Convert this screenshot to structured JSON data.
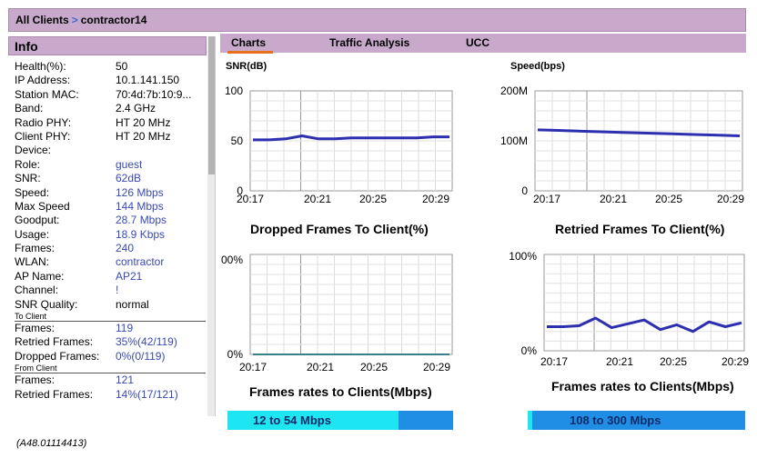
{
  "breadcrumb": {
    "root": "All Clients",
    "separator": ">",
    "current": "contractor14"
  },
  "info": {
    "title": "Info",
    "fields": [
      {
        "label": "Health(%):",
        "value": "50",
        "blue": false
      },
      {
        "label": "IP Address:",
        "value": "10.1.141.150",
        "blue": false
      },
      {
        "label": "Station MAC:",
        "value": "70:4d:7b:10:9...",
        "blue": false
      },
      {
        "label": "Band:",
        "value": "2.4 GHz",
        "blue": false
      },
      {
        "label": "Radio PHY:",
        "value": "HT 20 MHz",
        "blue": false
      },
      {
        "label": "Client PHY:",
        "value": "HT 20 MHz",
        "blue": false
      },
      {
        "label": "Device:",
        "value": "",
        "blue": false
      },
      {
        "label": "Role:",
        "value": "guest",
        "blue": true
      },
      {
        "label": "SNR:",
        "value": "62dB",
        "blue": true
      },
      {
        "label": "Speed:",
        "value": "126 Mbps",
        "blue": true
      },
      {
        "label": "Max Speed",
        "value": "144 Mbps",
        "blue": true
      },
      {
        "label": "Goodput:",
        "value": "28.7 Mbps",
        "blue": true
      },
      {
        "label": "Usage:",
        "value": "18.9 Kbps",
        "blue": true
      },
      {
        "label": "Frames:",
        "value": "240",
        "blue": true
      },
      {
        "label": "WLAN:",
        "value": "contractor",
        "blue": true
      },
      {
        "label": "AP Name:",
        "value": "AP21",
        "blue": true
      },
      {
        "label": "Channel:",
        "value": "!",
        "blue": true
      },
      {
        "label": "SNR Quality:",
        "value": "normal",
        "blue": false
      }
    ],
    "to_client": {
      "heading": "To Client",
      "fields": [
        {
          "label": "Frames:",
          "value": "119"
        },
        {
          "label": "Retried Frames:",
          "value": "35%(42/119)"
        },
        {
          "label": "Dropped Frames:",
          "value": "0%(0/119)"
        }
      ]
    },
    "from_client": {
      "heading": "From Client",
      "fields": [
        {
          "label": "Frames:",
          "value": "121"
        },
        {
          "label": "Retried Frames:",
          "value": "14%(17/121)"
        }
      ]
    }
  },
  "tabs": [
    {
      "label": "Charts",
      "active": true
    },
    {
      "label": "Traffic Analysis",
      "active": false
    },
    {
      "label": "UCC",
      "active": false
    }
  ],
  "colors": {
    "header": "#c8a8cb",
    "accent": "#e8701a",
    "line": "#2d2fb0",
    "link": "#3a49b3",
    "flat_line": "#3a7f8a"
  },
  "footnote": "(A48.01114413)",
  "chart_data": [
    {
      "type": "line",
      "title": "SNR(dB)",
      "caption": "",
      "yticks": [
        "100",
        "50",
        "0"
      ],
      "ylim": [
        0,
        100
      ],
      "xticks": [
        "20:17",
        "20:21",
        "20:25",
        "20:29"
      ],
      "x": [
        0,
        1,
        2,
        3,
        4,
        5,
        6,
        7,
        8,
        9,
        10,
        11,
        12
      ],
      "values": [
        51,
        51,
        52,
        55,
        52,
        52,
        53,
        53,
        53,
        53,
        53,
        54,
        54
      ]
    },
    {
      "type": "line",
      "title": "Speed(bps)",
      "caption": "",
      "yticks": [
        "200M",
        "100M",
        "0"
      ],
      "ylim": [
        0,
        200
      ],
      "xticks": [
        "20:17",
        "20:21",
        "20:25",
        "20:29"
      ],
      "x": [
        0,
        1,
        2,
        3,
        4,
        5,
        6,
        7,
        8,
        9,
        10,
        11,
        12
      ],
      "values": [
        122,
        121,
        120,
        119,
        118,
        117,
        116,
        115,
        114,
        113,
        112,
        111,
        110
      ]
    },
    {
      "type": "line",
      "title": "",
      "caption": "Dropped Frames To Client(%)",
      "yticks": [
        "00%",
        "0%"
      ],
      "ylim": [
        0,
        100
      ],
      "xticks": [
        "20:17",
        "20:21",
        "20:25",
        "20:29"
      ],
      "x": [
        0,
        1,
        2,
        3,
        4,
        5,
        6,
        7,
        8,
        9,
        10,
        11,
        12
      ],
      "values": [
        0,
        0,
        0,
        0,
        0,
        0,
        0,
        0,
        0,
        0,
        0,
        0,
        0
      ]
    },
    {
      "type": "line",
      "title": "",
      "caption": "Retried Frames To Client(%)",
      "yticks": [
        "100%",
        "0%"
      ],
      "ylim": [
        0,
        100
      ],
      "xticks": [
        "20:17",
        "20:21",
        "20:25",
        "20:29"
      ],
      "x": [
        0,
        1,
        2,
        3,
        4,
        5,
        6,
        7,
        8,
        9,
        10,
        11,
        12
      ],
      "values": [
        25,
        25,
        26,
        34,
        24,
        28,
        32,
        22,
        27,
        20,
        30,
        25,
        29
      ]
    }
  ],
  "rate_bars": [
    {
      "caption": "Frames rates to Clients(Mbps)",
      "label": "12 to 54 Mbps",
      "fill_fraction": 0.76,
      "color": "#1de6f2",
      "rest_color": "#1f8ee4"
    },
    {
      "caption": "Frames rates to Clients(Mbps)",
      "label": "108 to 300 Mbps",
      "fill_fraction": 0.02,
      "color": "#1de6f2",
      "rest_color": "#1f8ee4"
    }
  ]
}
